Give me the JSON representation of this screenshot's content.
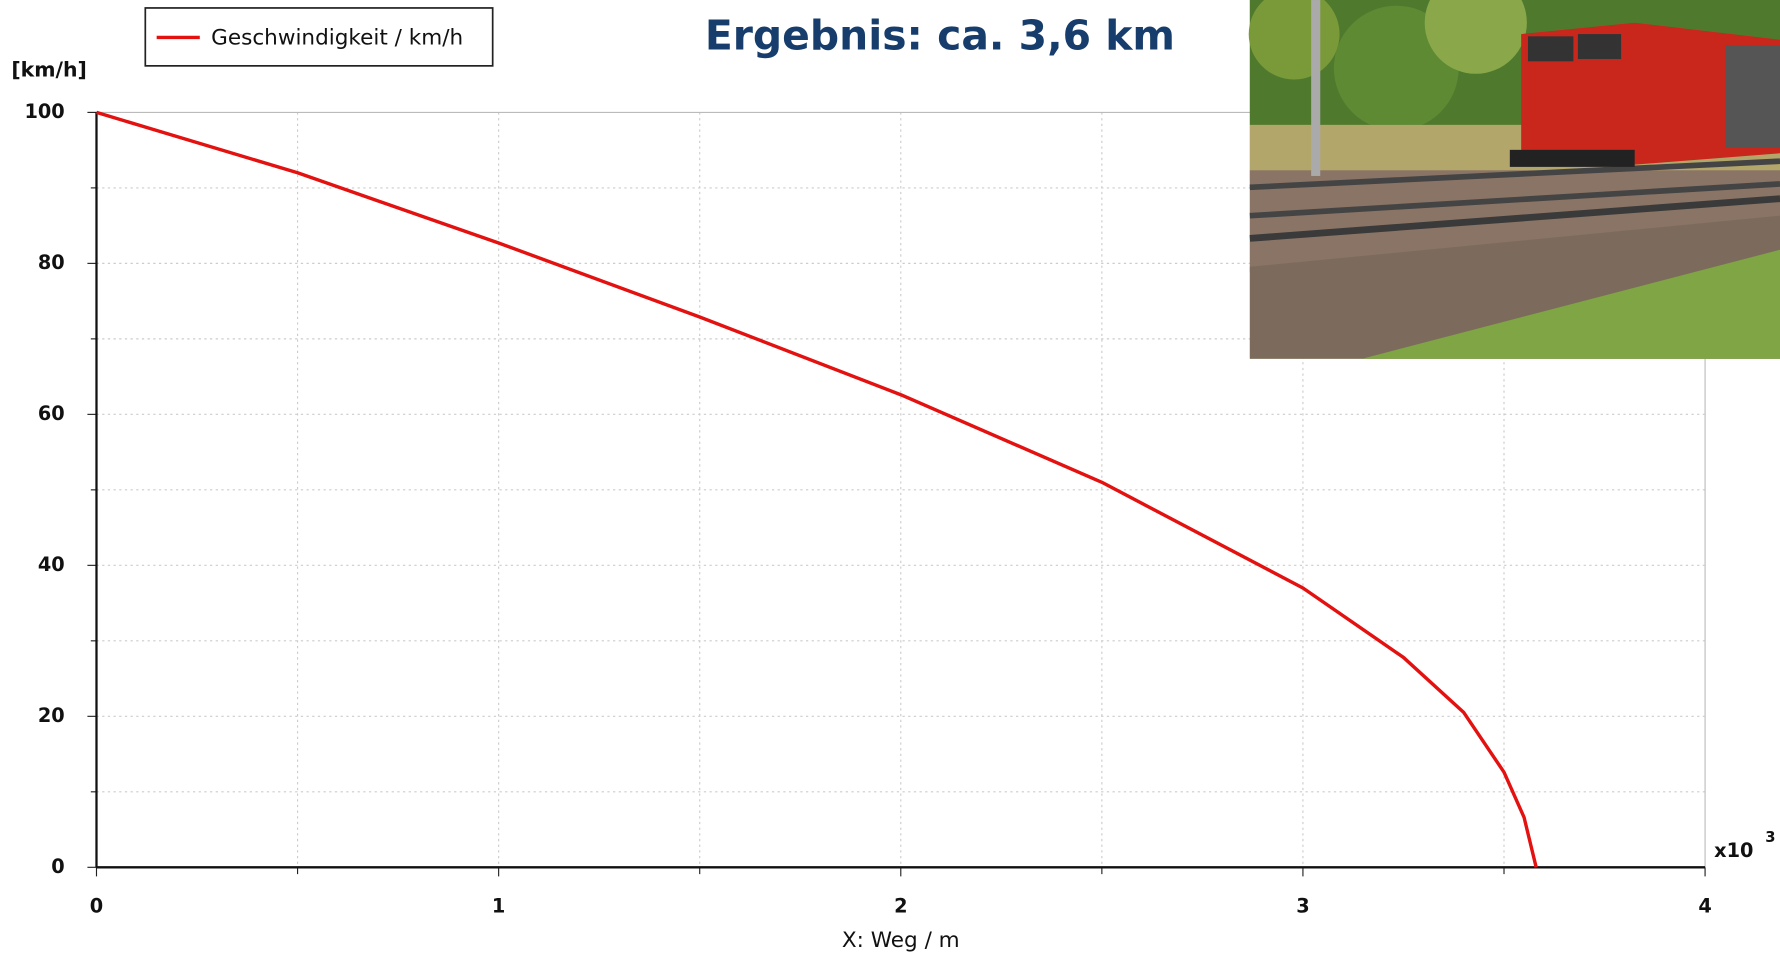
{
  "chart_data": {
    "type": "line",
    "title": "Ergebnis: ca. 3,6 km",
    "y_label": "[km/h]",
    "x_label": "X: Weg / m",
    "x_multiplier": {
      "base": "x10",
      "exponent": "3"
    },
    "x": [
      0,
      0.5,
      1,
      1.5,
      2,
      2.5,
      3,
      3.25,
      3.4,
      3.5,
      3.55,
      3.58
    ],
    "series": [
      {
        "name": "Geschwindigkeit / km/h",
        "color": "#e3110f",
        "values": [
          100,
          92,
          82.7,
          72.9,
          62.6,
          51,
          37,
          27.8,
          20.5,
          12.6,
          6.6,
          0
        ]
      }
    ],
    "xlim": [
      0,
      4
    ],
    "xticks": [
      0,
      1,
      2,
      3,
      4
    ],
    "ylim": [
      0,
      100
    ],
    "yticks": [
      0,
      20,
      40,
      60,
      80,
      100
    ],
    "grid": true,
    "legend": "top-left"
  }
}
